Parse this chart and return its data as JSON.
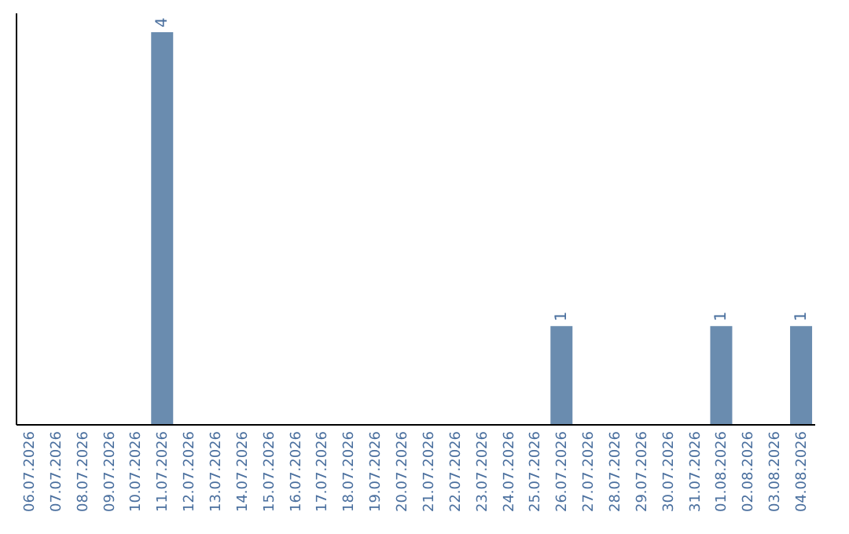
{
  "chart_data": {
    "type": "bar",
    "categories": [
      "06.07.2026",
      "07.07.2026",
      "08.07.2026",
      "09.07.2026",
      "10.07.2026",
      "11.07.2026",
      "12.07.2026",
      "13.07.2026",
      "14.07.2026",
      "15.07.2026",
      "16.07.2026",
      "17.07.2026",
      "18.07.2026",
      "19.07.2026",
      "20.07.2026",
      "21.07.2026",
      "22.07.2026",
      "23.07.2026",
      "24.07.2026",
      "25.07.2026",
      "26.07.2026",
      "27.07.2026",
      "28.07.2026",
      "29.07.2026",
      "30.07.2026",
      "31.07.2026",
      "01.08.2026",
      "02.08.2026",
      "03.08.2026",
      "04.08.2026"
    ],
    "values": [
      0,
      0,
      0,
      0,
      0,
      4,
      0,
      0,
      0,
      0,
      0,
      0,
      0,
      0,
      0,
      0,
      0,
      0,
      0,
      0,
      1,
      0,
      0,
      0,
      0,
      0,
      1,
      0,
      0,
      1
    ],
    "value_labels": [
      null,
      null,
      null,
      null,
      null,
      "4",
      null,
      null,
      null,
      null,
      null,
      null,
      null,
      null,
      null,
      null,
      null,
      null,
      null,
      null,
      "1",
      null,
      null,
      null,
      null,
      null,
      "1",
      null,
      null,
      "1"
    ],
    "color": "#6a8caf",
    "ylim": [
      0,
      4.2
    ],
    "tick_labels": "x",
    "grid": false
  }
}
